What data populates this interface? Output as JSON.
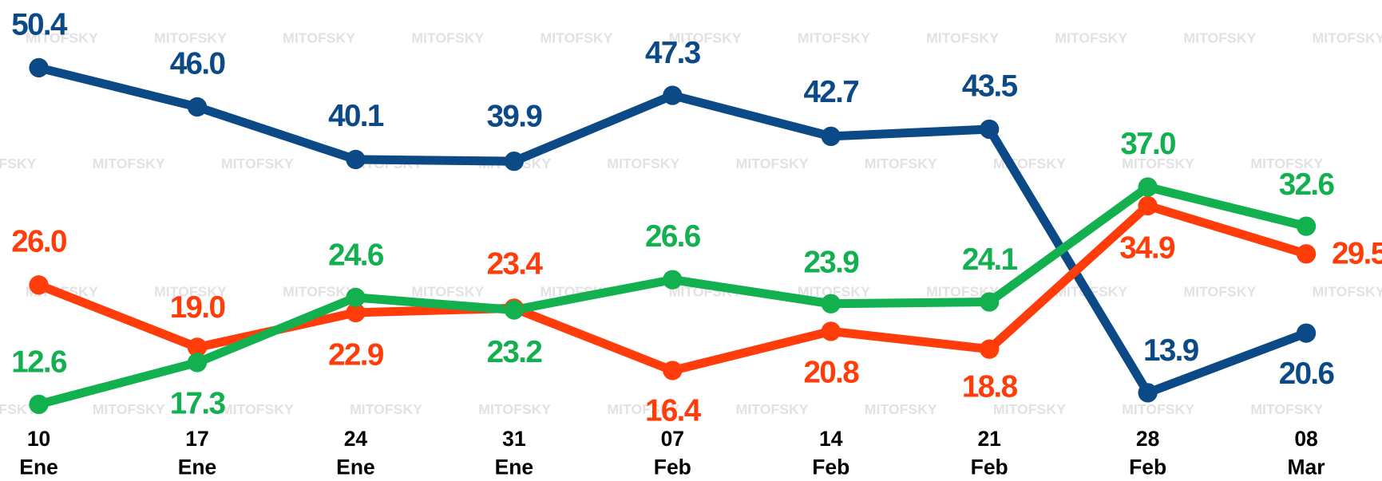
{
  "chart_data": {
    "type": "line",
    "watermark": "MITOFSKY",
    "categories": [
      [
        "10",
        "Ene"
      ],
      [
        "17",
        "Ene"
      ],
      [
        "24",
        "Ene"
      ],
      [
        "31",
        "Ene"
      ],
      [
        "07",
        "Feb"
      ],
      [
        "14",
        "Feb"
      ],
      [
        "21",
        "Feb"
      ],
      [
        "28",
        "Feb"
      ],
      [
        "08",
        "Mar"
      ]
    ],
    "series": [
      {
        "color": "#0b4a86",
        "values": [
          50.4,
          46.0,
          40.1,
          39.9,
          47.3,
          42.7,
          43.5,
          13.9,
          20.6
        ],
        "value_labels": [
          "50.4",
          "46.0",
          "40.1",
          "39.9",
          "47.3",
          "42.7",
          "43.5",
          "13.9",
          "20.6"
        ]
      },
      {
        "color": "#ff3c0a",
        "values": [
          26.0,
          19.0,
          22.9,
          23.4,
          16.4,
          20.8,
          18.8,
          34.9,
          29.5
        ],
        "value_labels": [
          "26.0",
          "19.0",
          "22.9",
          "23.4",
          "16.4",
          "20.8",
          "18.8",
          "34.9",
          "29.5"
        ]
      },
      {
        "color": "#13b050",
        "values": [
          12.6,
          17.3,
          24.6,
          23.2,
          26.6,
          23.9,
          24.1,
          37.0,
          32.6
        ],
        "value_labels": [
          "12.6",
          "17.3",
          "24.6",
          "23.2",
          "26.6",
          "23.9",
          "24.1",
          "37.0",
          "32.6"
        ]
      }
    ],
    "ylim": [
      4,
      58
    ]
  }
}
